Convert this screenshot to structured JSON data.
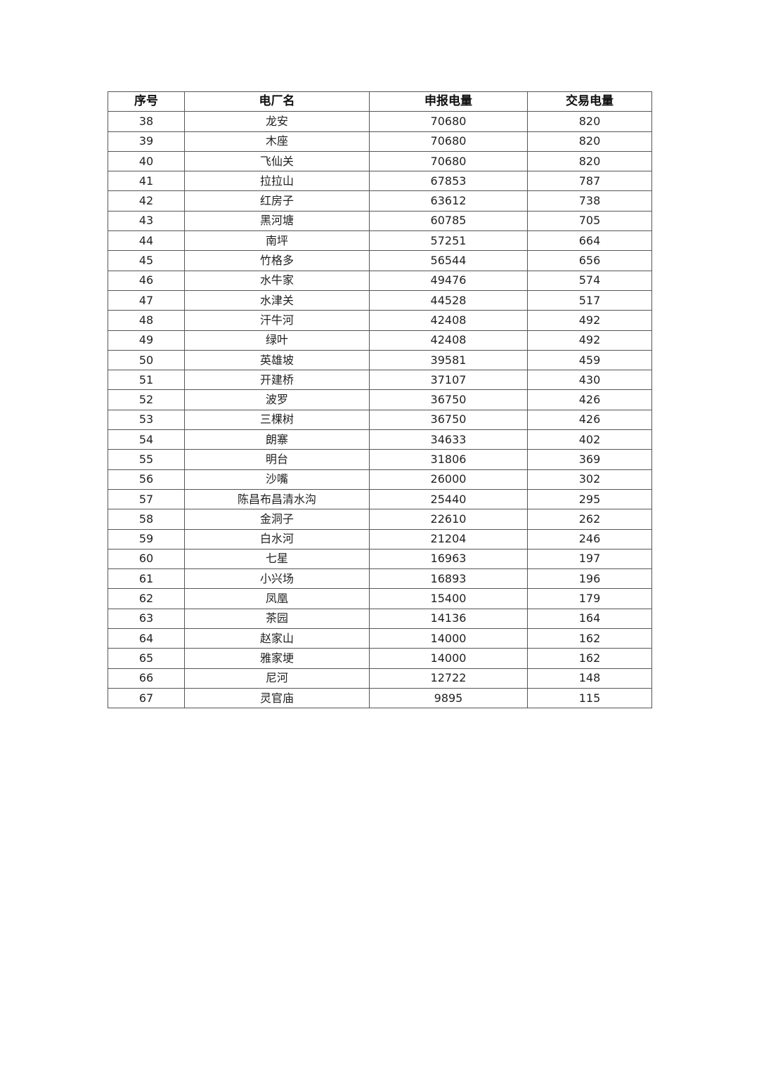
{
  "table": {
    "headers": [
      "序号",
      "电厂名",
      "申报电量",
      "交易电量"
    ],
    "rows": [
      [
        "38",
        "龙安",
        "70680",
        "820"
      ],
      [
        "39",
        "木座",
        "70680",
        "820"
      ],
      [
        "40",
        "飞仙关",
        "70680",
        "820"
      ],
      [
        "41",
        "拉拉山",
        "67853",
        "787"
      ],
      [
        "42",
        "红房子",
        "63612",
        "738"
      ],
      [
        "43",
        "黑河塘",
        "60785",
        "705"
      ],
      [
        "44",
        "南坪",
        "57251",
        "664"
      ],
      [
        "45",
        "竹格多",
        "56544",
        "656"
      ],
      [
        "46",
        "水牛家",
        "49476",
        "574"
      ],
      [
        "47",
        "水津关",
        "44528",
        "517"
      ],
      [
        "48",
        "汗牛河",
        "42408",
        "492"
      ],
      [
        "49",
        "绿叶",
        "42408",
        "492"
      ],
      [
        "50",
        "英雄坡",
        "39581",
        "459"
      ],
      [
        "51",
        "开建桥",
        "37107",
        "430"
      ],
      [
        "52",
        "波罗",
        "36750",
        "426"
      ],
      [
        "53",
        "三棵树",
        "36750",
        "426"
      ],
      [
        "54",
        "朗寨",
        "34633",
        "402"
      ],
      [
        "55",
        "明台",
        "31806",
        "369"
      ],
      [
        "56",
        "沙嘴",
        "26000",
        "302"
      ],
      [
        "57",
        "陈昌布昌清水沟",
        "25440",
        "295"
      ],
      [
        "58",
        "金洞子",
        "22610",
        "262"
      ],
      [
        "59",
        "白水河",
        "21204",
        "246"
      ],
      [
        "60",
        "七星",
        "16963",
        "197"
      ],
      [
        "61",
        "小兴场",
        "16893",
        "196"
      ],
      [
        "62",
        "凤凰",
        "15400",
        "179"
      ],
      [
        "63",
        "茶园",
        "14136",
        "164"
      ],
      [
        "64",
        "赵家山",
        "14000",
        "162"
      ],
      [
        "65",
        "雅家埂",
        "14000",
        "162"
      ],
      [
        "66",
        "尼河",
        "12722",
        "148"
      ],
      [
        "67",
        "灵官庙",
        "9895",
        "115"
      ]
    ]
  }
}
